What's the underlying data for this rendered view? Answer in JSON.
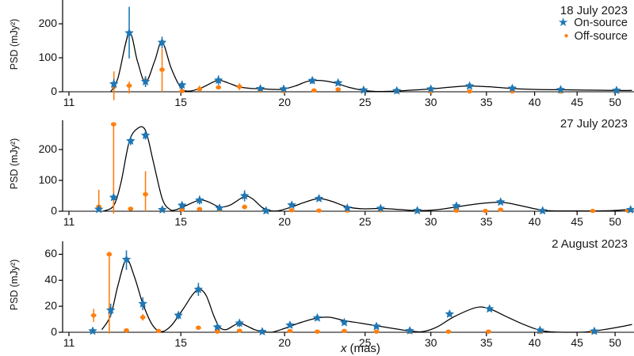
{
  "colors": {
    "on_source": "#1f77b4",
    "off_source": "#ff7f0e",
    "curve": "#000000",
    "axis": "#000000",
    "text": "#1a1a1a"
  },
  "axes": {
    "xlabel_var": "x",
    "xlabel_unit": "(mas)",
    "ylabel": "PSD (mJy²)",
    "xscale": "log",
    "xlim": [
      10.8,
      52.4
    ],
    "xticks": [
      11,
      15,
      20,
      25,
      30,
      35,
      40,
      45,
      50
    ]
  },
  "legend": {
    "items": [
      {
        "marker": "star",
        "glyph": "★",
        "label": "On-source",
        "color": "#1f77b4"
      },
      {
        "marker": "circle",
        "glyph": "●",
        "label": "Off-source",
        "color": "#ff7f0e"
      }
    ]
  },
  "chart_data": [
    {
      "type": "line+scatter",
      "title": "18 July 2023",
      "ylim": [
        0,
        270
      ],
      "yticks": [
        0,
        100,
        200
      ],
      "on_source": [
        [
          12.46,
          23,
          10,
          38
        ],
        [
          13.0,
          173,
          98,
          250
        ],
        [
          13.6,
          30,
          14,
          46
        ],
        [
          14.24,
          145,
          128,
          162
        ],
        [
          15.05,
          20,
          8,
          32
        ],
        [
          16.65,
          34,
          20,
          48
        ],
        [
          18.7,
          9
        ],
        [
          19.95,
          8
        ],
        [
          21.6,
          33,
          24,
          42
        ],
        [
          23.2,
          26,
          19,
          33
        ],
        [
          24.9,
          5
        ],
        [
          27.3,
          3
        ],
        [
          30.0,
          8
        ],
        [
          33.4,
          17
        ],
        [
          37.6,
          10
        ],
        [
          43.0,
          6
        ],
        [
          50.2,
          4
        ]
      ],
      "off_source": [
        [
          12.46,
          15,
          -25,
          60
        ],
        [
          13.0,
          18,
          -5,
          30
        ],
        [
          13.6,
          33,
          20,
          44
        ],
        [
          14.24,
          65,
          0,
          127
        ],
        [
          15.05,
          2
        ],
        [
          15.8,
          8,
          0,
          18
        ],
        [
          16.65,
          13
        ],
        [
          17.65,
          15,
          5,
          25
        ],
        [
          18.7,
          3
        ],
        [
          19.95,
          2
        ],
        [
          21.7,
          4
        ],
        [
          23.2,
          7
        ],
        [
          24.9,
          4
        ],
        [
          27.3,
          1
        ],
        [
          30.0,
          1
        ],
        [
          33.4,
          1
        ],
        [
          37.6,
          1
        ],
        [
          43.0,
          1
        ],
        [
          50.2,
          2
        ]
      ],
      "curve": [
        [
          12.35,
          0
        ],
        [
          12.6,
          40
        ],
        [
          13.0,
          173
        ],
        [
          13.3,
          90
        ],
        [
          13.6,
          28
        ],
        [
          13.95,
          90
        ],
        [
          14.24,
          147
        ],
        [
          14.6,
          70
        ],
        [
          15.0,
          12
        ],
        [
          15.35,
          2
        ],
        [
          15.9,
          12
        ],
        [
          16.6,
          33
        ],
        [
          17.1,
          26
        ],
        [
          17.6,
          15
        ],
        [
          18.2,
          10
        ],
        [
          18.7,
          9
        ],
        [
          19.4,
          7
        ],
        [
          19.95,
          8
        ],
        [
          20.6,
          17
        ],
        [
          21.35,
          31
        ],
        [
          22.1,
          33
        ],
        [
          23.0,
          26
        ],
        [
          23.9,
          13
        ],
        [
          24.9,
          4
        ],
        [
          25.8,
          1
        ],
        [
          27.2,
          2
        ],
        [
          28.5,
          5
        ],
        [
          29.9,
          8
        ],
        [
          31.5,
          13
        ],
        [
          33.2,
          17
        ],
        [
          35.2,
          15
        ],
        [
          37.4,
          10
        ],
        [
          39.9,
          7
        ],
        [
          42.7,
          6
        ],
        [
          45.9,
          5
        ],
        [
          49.8,
          4
        ],
        [
          52.4,
          4
        ]
      ]
    },
    {
      "type": "line+scatter",
      "title": "27 July 2023",
      "ylim": [
        0,
        295
      ],
      "yticks": [
        0,
        100,
        200
      ],
      "on_source": [
        [
          11.95,
          6
        ],
        [
          12.45,
          45,
          35,
          55
        ],
        [
          13.05,
          228,
          214,
          242
        ],
        [
          13.6,
          246,
          232,
          260
        ],
        [
          14.25,
          5
        ],
        [
          15.05,
          19,
          8,
          30
        ],
        [
          15.8,
          36,
          22,
          50
        ],
        [
          16.7,
          10
        ],
        [
          17.9,
          50,
          32,
          68
        ],
        [
          19.0,
          1.5
        ],
        [
          20.4,
          20
        ],
        [
          22.0,
          41,
          34,
          48
        ],
        [
          23.8,
          10
        ],
        [
          26.1,
          9
        ],
        [
          28.9,
          2
        ],
        [
          32.2,
          17
        ],
        [
          36.4,
          30,
          25,
          35
        ],
        [
          40.9,
          1.5
        ],
        [
          52.2,
          5
        ]
      ],
      "off_source": [
        [
          11.95,
          15,
          0,
          70
        ],
        [
          12.45,
          282,
          -8,
          282
        ],
        [
          13.05,
          8
        ],
        [
          13.6,
          55,
          0,
          130
        ],
        [
          14.25,
          4
        ],
        [
          15.05,
          5
        ],
        [
          15.8,
          7
        ],
        [
          16.7,
          4
        ],
        [
          17.9,
          14,
          6,
          22
        ],
        [
          19.0,
          2
        ],
        [
          20.4,
          3
        ],
        [
          22.0,
          2
        ],
        [
          23.8,
          2
        ],
        [
          26.1,
          3
        ],
        [
          28.9,
          1
        ],
        [
          32.2,
          2
        ],
        [
          34.9,
          1
        ],
        [
          36.4,
          5
        ],
        [
          40.9,
          1
        ],
        [
          47.0,
          1
        ],
        [
          51.8,
          2
        ]
      ],
      "curve": [
        [
          12.1,
          0
        ],
        [
          12.45,
          18
        ],
        [
          12.7,
          90
        ],
        [
          13.0,
          225
        ],
        [
          13.3,
          268
        ],
        [
          13.6,
          262
        ],
        [
          13.9,
          160
        ],
        [
          14.25,
          40
        ],
        [
          14.55,
          6
        ],
        [
          14.8,
          5
        ],
        [
          15.2,
          18
        ],
        [
          15.8,
          36
        ],
        [
          16.2,
          30
        ],
        [
          16.7,
          14
        ],
        [
          17.2,
          20
        ],
        [
          17.9,
          48
        ],
        [
          18.3,
          40
        ],
        [
          18.8,
          12
        ],
        [
          19.2,
          2
        ],
        [
          19.7,
          2
        ],
        [
          20.4,
          14
        ],
        [
          21.2,
          30
        ],
        [
          22.0,
          41
        ],
        [
          22.8,
          32
        ],
        [
          23.8,
          14
        ],
        [
          24.8,
          8
        ],
        [
          26.1,
          9
        ],
        [
          27.4,
          6
        ],
        [
          28.9,
          2
        ],
        [
          30.5,
          5
        ],
        [
          32.2,
          14
        ],
        [
          34.2,
          24
        ],
        [
          36.4,
          29
        ],
        [
          38.2,
          20
        ],
        [
          40.0,
          8
        ],
        [
          41.5,
          2
        ],
        [
          43.5,
          1
        ],
        [
          45.5,
          1
        ],
        [
          47.5,
          1
        ],
        [
          49.5,
          2
        ],
        [
          51.0,
          4
        ],
        [
          52.4,
          7
        ]
      ]
    },
    {
      "type": "line+scatter",
      "title": "2 August 2023",
      "ylim": [
        0,
        70
      ],
      "yticks": [
        0,
        20,
        40,
        60
      ],
      "on_source": [
        [
          11.75,
          1
        ],
        [
          12.35,
          17,
          12,
          22
        ],
        [
          12.9,
          56,
          48,
          63
        ],
        [
          13.5,
          22,
          17,
          27
        ],
        [
          14.9,
          13,
          10,
          16
        ],
        [
          15.75,
          33,
          28,
          38
        ],
        [
          16.6,
          4
        ],
        [
          17.65,
          7,
          4,
          10
        ],
        [
          18.8,
          0.5
        ],
        [
          20.3,
          5.5
        ],
        [
          21.9,
          11
        ],
        [
          23.6,
          7.5
        ],
        [
          25.8,
          4.5
        ],
        [
          28.3,
          1.2
        ],
        [
          31.6,
          14
        ],
        [
          35.3,
          18
        ],
        [
          40.6,
          1.5
        ],
        [
          47.2,
          0.8
        ]
      ],
      "off_source": [
        [
          11.78,
          13,
          8,
          18
        ],
        [
          12.3,
          60,
          -1,
          62
        ],
        [
          12.9,
          1.5
        ],
        [
          13.5,
          11.5,
          9,
          14
        ],
        [
          14.1,
          1
        ],
        [
          15.75,
          3.5
        ],
        [
          16.6,
          0.5
        ],
        [
          17.65,
          1.2
        ],
        [
          18.8,
          0.5
        ],
        [
          20.3,
          1
        ],
        [
          21.9,
          0.5
        ],
        [
          23.6,
          1
        ],
        [
          25.8,
          0.5
        ],
        [
          28.3,
          0.5
        ],
        [
          31.5,
          0.5
        ],
        [
          35.2,
          0.5
        ],
        [
          40.6,
          0.3
        ],
        [
          47.0,
          0.5
        ]
      ],
      "curve": [
        [
          12.05,
          2
        ],
        [
          12.35,
          13
        ],
        [
          12.6,
          36
        ],
        [
          12.9,
          56
        ],
        [
          13.2,
          42
        ],
        [
          13.5,
          22
        ],
        [
          13.85,
          6
        ],
        [
          14.2,
          0.5
        ],
        [
          14.6,
          5
        ],
        [
          15.1,
          18
        ],
        [
          15.5,
          29
        ],
        [
          15.8,
          33
        ],
        [
          16.1,
          28
        ],
        [
          16.45,
          12
        ],
        [
          16.7,
          4
        ],
        [
          17.0,
          2
        ],
        [
          17.35,
          5
        ],
        [
          17.65,
          7
        ],
        [
          18.0,
          5
        ],
        [
          18.4,
          2
        ],
        [
          18.8,
          0.5
        ],
        [
          19.3,
          0
        ],
        [
          20.0,
          3
        ],
        [
          20.8,
          7
        ],
        [
          21.9,
          11
        ],
        [
          22.7,
          11.5
        ],
        [
          23.6,
          9
        ],
        [
          24.7,
          7
        ],
        [
          25.8,
          5
        ],
        [
          27.0,
          3
        ],
        [
          28.3,
          1
        ],
        [
          29.3,
          0.5
        ],
        [
          30.5,
          4
        ],
        [
          32.0,
          12
        ],
        [
          34.0,
          19
        ],
        [
          35.3,
          18
        ],
        [
          37.0,
          12
        ],
        [
          38.8,
          6
        ],
        [
          40.6,
          1.5
        ],
        [
          42.0,
          0.3
        ],
        [
          44.0,
          0
        ],
        [
          46.0,
          0.2
        ],
        [
          47.2,
          1
        ],
        [
          49.0,
          2.5
        ],
        [
          51.0,
          4.5
        ],
        [
          52.4,
          6
        ]
      ]
    }
  ]
}
